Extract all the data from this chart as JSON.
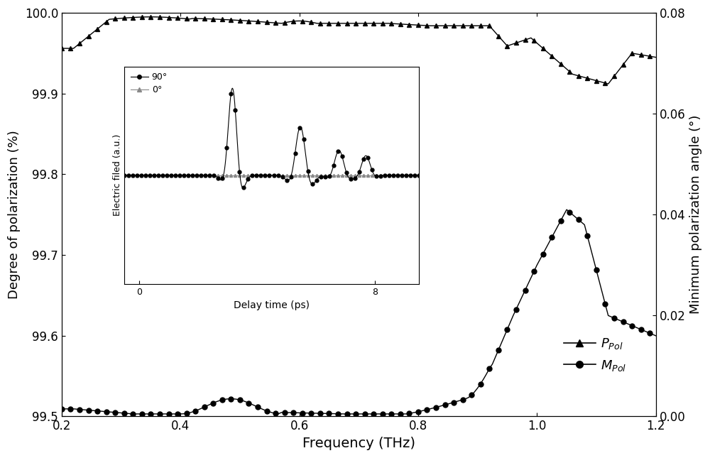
{
  "xlabel": "Frequency (THz)",
  "ylabel_left": "Degree of polarization (%)",
  "ylabel_right": "Minimum polarization angle (°)",
  "xlim": [
    0.2,
    1.2
  ],
  "ylim_left": [
    99.5,
    100.0
  ],
  "ylim_right": [
    0.0,
    0.08
  ],
  "xticks": [
    0.2,
    0.4,
    0.6,
    0.8,
    1.0,
    1.2
  ],
  "yticks_left": [
    99.5,
    99.6,
    99.7,
    99.8,
    99.9,
    100.0
  ],
  "yticks_right": [
    0.0,
    0.02,
    0.04,
    0.06,
    0.08
  ],
  "bg_color": "#ffffff",
  "inset_xlabel": "Delay time (ps)",
  "inset_ylabel": "Electric filed (a.u.)"
}
